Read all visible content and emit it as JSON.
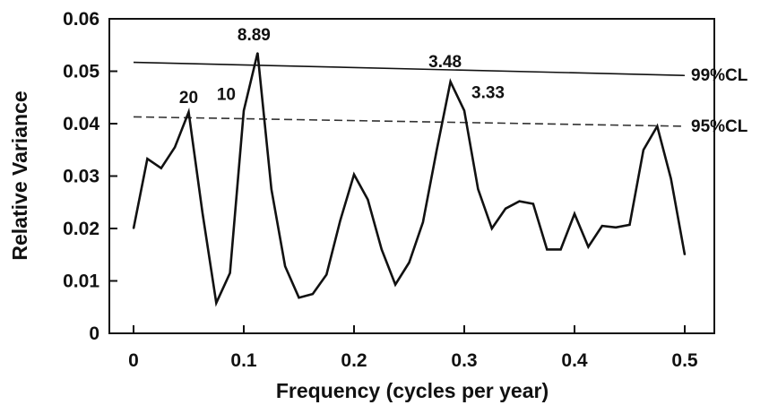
{
  "chart_data": {
    "type": "line",
    "xlabel": "Frequency (cycles per year)",
    "ylabel": "Relative Variance",
    "xlim": [
      -0.025,
      0.525
    ],
    "ylim": [
      0,
      0.06
    ],
    "x_ticks": [
      "0",
      "0.1",
      "0.2",
      "0.3",
      "0.4",
      "0.5"
    ],
    "y_ticks": [
      "0",
      "0.01",
      "0.02",
      "0.03",
      "0.04",
      "0.05",
      "0.06"
    ],
    "grid": false,
    "series": [
      {
        "x": [
          0,
          0.0125,
          0.025,
          0.0375,
          0.05,
          0.0625,
          0.075,
          0.0875,
          0.1,
          0.1125,
          0.125,
          0.1375,
          0.15,
          0.1625,
          0.175,
          0.1875,
          0.2,
          0.2125,
          0.225,
          0.2375,
          0.25,
          0.2625,
          0.275,
          0.2875,
          0.3,
          0.3125,
          0.325,
          0.3375,
          0.35,
          0.3625,
          0.375,
          0.3875,
          0.4,
          0.4125,
          0.425,
          0.4375,
          0.45,
          0.4625,
          0.475,
          0.4875,
          0.5
        ],
        "values": [
          0.02,
          0.0333,
          0.0315,
          0.0355,
          0.0422,
          0.023,
          0.0058,
          0.0115,
          0.0425,
          0.0535,
          0.0275,
          0.0128,
          0.0068,
          0.0075,
          0.0112,
          0.0215,
          0.0303,
          0.0255,
          0.016,
          0.0093,
          0.0135,
          0.0212,
          0.035,
          0.048,
          0.0425,
          0.0275,
          0.02,
          0.0238,
          0.0252,
          0.0247,
          0.016,
          0.016,
          0.0228,
          0.0165,
          0.0205,
          0.0202,
          0.0207,
          0.035,
          0.0395,
          0.0295,
          0.015
        ]
      }
    ],
    "confidence_lines": [
      {
        "label": "99%CL",
        "x": [
          0,
          0.5
        ],
        "values": [
          0.0517,
          0.0492
        ],
        "style": "solid"
      },
      {
        "label": "95%CL",
        "x": [
          0,
          0.5
        ],
        "values": [
          0.0413,
          0.0395
        ],
        "style": "dashed"
      }
    ],
    "peak_labels": [
      {
        "text": "20",
        "x": 0.05,
        "y": 0.0422
      },
      {
        "text": "10",
        "x": 0.1,
        "y": 0.0425
      },
      {
        "text": "8.89",
        "x": 0.1125,
        "y": 0.0535
      },
      {
        "text": "3.48",
        "x": 0.2875,
        "y": 0.048
      },
      {
        "text": "3.33",
        "x": 0.3,
        "y": 0.0425
      }
    ],
    "colors": {
      "line": "#111111",
      "cl99": "#111111",
      "cl95": "#333333"
    }
  }
}
